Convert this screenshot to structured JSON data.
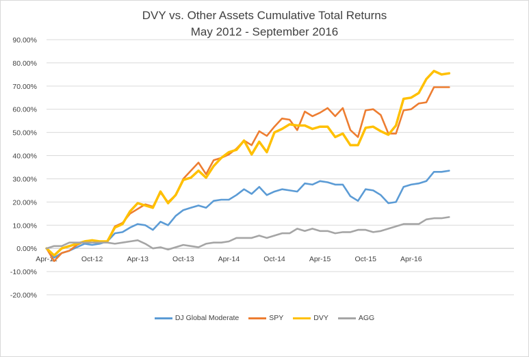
{
  "chart_data": {
    "type": "line",
    "title": "DVY vs. Other Assets Cumulative Total Returns",
    "subtitle": "May 2012 - September 2016",
    "xlabel": "",
    "ylabel": "",
    "ylim": [
      -20,
      90
    ],
    "y_ticks": [
      "90.00%",
      "80.00%",
      "70.00%",
      "60.00%",
      "50.00%",
      "40.00%",
      "30.00%",
      "20.00%",
      "10.00%",
      "0.00%",
      "-10.00%",
      "-20.00%"
    ],
    "x_ticks": [
      "Apr-12",
      "Oct-12",
      "Apr-13",
      "Oct-13",
      "Apr-14",
      "Oct-14",
      "Apr-15",
      "Oct-15",
      "Apr-16"
    ],
    "x_tick_month_index": [
      0,
      6,
      12,
      18,
      24,
      30,
      36,
      42,
      48
    ],
    "x_start_label": "Apr-12",
    "x_month_count": 54,
    "grid": "horizontal",
    "legend_position": "bottom",
    "series": [
      {
        "name": "DJ Global Moderate",
        "color": "#5b9bd5",
        "values": [
          0,
          -4,
          -2,
          -1,
          0.5,
          2,
          1.5,
          2,
          3,
          6.5,
          7,
          9,
          10.5,
          10,
          8,
          11.5,
          10,
          14,
          16.5,
          17.5,
          18.5,
          17.5,
          20.5,
          21,
          21,
          23,
          25.5,
          23.5,
          26.5,
          23,
          24.5,
          25.5,
          25,
          24.5,
          28,
          27.5,
          29,
          28.5,
          27.5,
          27.5,
          22.5,
          20.5,
          25.5,
          25,
          23,
          19.5,
          20,
          26.5,
          27.5,
          28,
          29,
          33,
          33,
          33.5
        ]
      },
      {
        "name": "SPY",
        "color": "#ed7d31",
        "values": [
          0,
          -5.5,
          -2,
          -1,
          1.5,
          3,
          3.5,
          3,
          3,
          9.5,
          11,
          15,
          17,
          19,
          18,
          24,
          20,
          23,
          30,
          33.5,
          37,
          32,
          38,
          39,
          40.5,
          43,
          46.5,
          44.5,
          50.5,
          48.5,
          52.5,
          56,
          55.5,
          51,
          59,
          57,
          58.5,
          60.5,
          57,
          60.5,
          51,
          48,
          59.5,
          60,
          57.5,
          49.5,
          49.5,
          59.5,
          60,
          62.5,
          63,
          69.5,
          69.5,
          69.5
        ]
      },
      {
        "name": "DVY",
        "color": "#ffc000",
        "values": [
          0,
          -3,
          0,
          1,
          2,
          3,
          3.5,
          3,
          3,
          9,
          10.5,
          16,
          19.5,
          18.5,
          17.5,
          24.5,
          19.5,
          23,
          29.5,
          30.5,
          33.5,
          30.5,
          35.5,
          39,
          41.5,
          42.5,
          46.5,
          40.5,
          46,
          41.5,
          50,
          51.5,
          53.5,
          53,
          53,
          51.5,
          52.5,
          52.5,
          48,
          49.5,
          44.5,
          44.5,
          52,
          52.5,
          50.5,
          49,
          53,
          64.5,
          65,
          67,
          73,
          76.5,
          75,
          75.5
        ]
      },
      {
        "name": "AGG",
        "color": "#a5a5a5",
        "values": [
          0,
          1,
          1,
          2.5,
          2.5,
          2.5,
          2.5,
          2.5,
          2.5,
          2,
          2.5,
          3,
          3.5,
          2,
          0,
          0.5,
          -0.5,
          0.5,
          1.5,
          1,
          0.5,
          2,
          2.5,
          2.5,
          3,
          4.5,
          4.5,
          4.5,
          5.5,
          4.5,
          5.5,
          6.5,
          6.5,
          8.5,
          7.5,
          8.5,
          7.5,
          7.5,
          6.5,
          7,
          7,
          8,
          8,
          7,
          7.5,
          8.5,
          9.5,
          10.5,
          10.5,
          10.5,
          12.5,
          13,
          13,
          13.5
        ]
      }
    ]
  }
}
